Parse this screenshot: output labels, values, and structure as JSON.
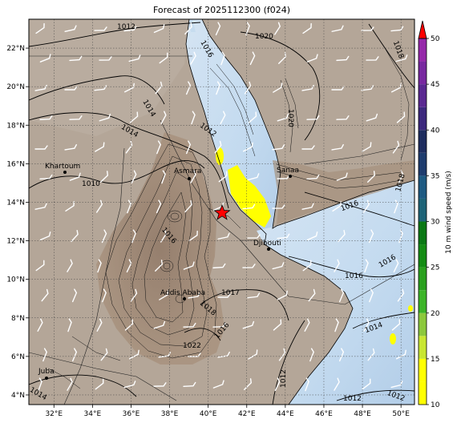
{
  "title": "Forecast of 2025112300 (f024)",
  "colorbar": {
    "label": "10 m wind speed (m/s)",
    "ticks": [
      10,
      15,
      20,
      25,
      30,
      35,
      40,
      45,
      50
    ],
    "bands": [
      {
        "from": 10,
        "to": 12.5,
        "color": "#ffff00"
      },
      {
        "from": 12.5,
        "to": 15,
        "color": "#ffff00"
      },
      {
        "from": 15,
        "to": 17.5,
        "color": "#c8e632"
      },
      {
        "from": 17.5,
        "to": 20,
        "color": "#8cc83c"
      },
      {
        "from": 20,
        "to": 22.5,
        "color": "#3cb428"
      },
      {
        "from": 22.5,
        "to": 25,
        "color": "#2aa01e"
      },
      {
        "from": 25,
        "to": 27.5,
        "color": "#148c14"
      },
      {
        "from": 27.5,
        "to": 30,
        "color": "#0a7814"
      },
      {
        "from": 30,
        "to": 32.5,
        "color": "#1e6478"
      },
      {
        "from": 32.5,
        "to": 35,
        "color": "#1e5a82"
      },
      {
        "from": 35,
        "to": 37.5,
        "color": "#1e3c6e"
      },
      {
        "from": 37.5,
        "to": 40,
        "color": "#1e2d5f"
      },
      {
        "from": 40,
        "to": 42.5,
        "color": "#3c287d"
      },
      {
        "from": 42.5,
        "to": 45,
        "color": "#5a2891"
      },
      {
        "from": 45,
        "to": 47.5,
        "color": "#7828a0"
      },
      {
        "from": 47.5,
        "to": 50,
        "color": "#9628aa"
      }
    ],
    "extend_color": "#ff0000"
  },
  "axes": {
    "lon_ticks": [
      "32°E",
      "34°E",
      "36°E",
      "38°E",
      "40°E",
      "42°E",
      "44°E",
      "46°E",
      "48°E",
      "50°E"
    ],
    "lat_ticks": [
      "4°N",
      "6°N",
      "8°N",
      "10°N",
      "12°N",
      "14°N",
      "16°N",
      "18°N",
      "20°N",
      "22°N"
    ]
  },
  "cities": [
    "Khartoum",
    "Asmara",
    "Sanaa",
    "Djibouti",
    "Addis Ababa",
    "Juba"
  ],
  "isobar_labels": [
    "1012",
    "1020",
    "1016",
    "1018",
    "1014",
    "1012",
    "1010",
    "1014",
    "1020",
    "1016",
    "1018",
    "1016",
    "1016",
    "1016",
    "1017",
    "1018",
    "1016",
    "1022",
    "1014",
    "1012",
    "1012",
    "1012",
    "1014"
  ],
  "colors": {
    "sea": "#c6dcef",
    "land": "#b3a598",
    "highland": "#a08a76",
    "star": "#ff0000"
  }
}
